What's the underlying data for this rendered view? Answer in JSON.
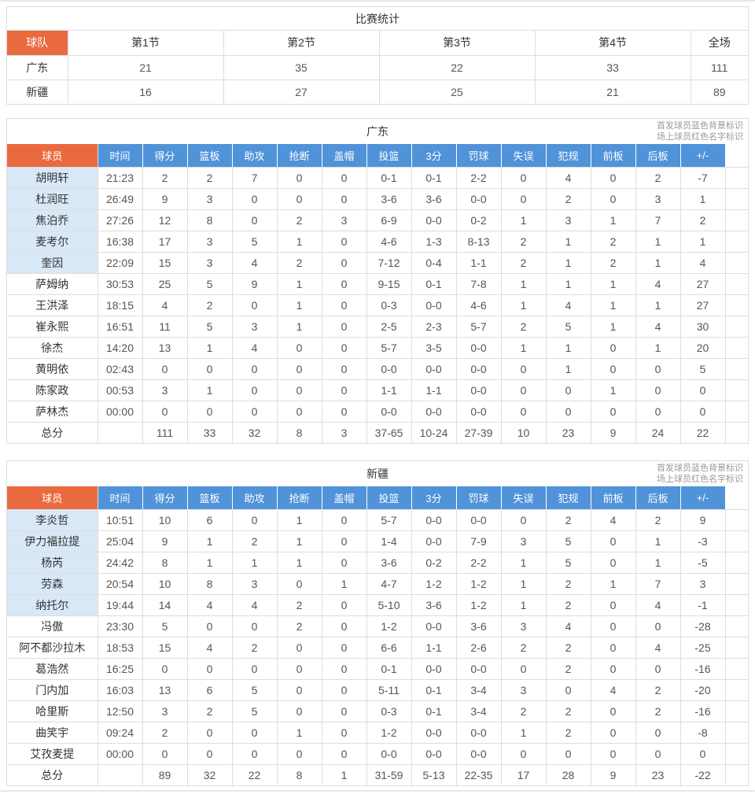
{
  "colors": {
    "accent_orange": "#EA6A40",
    "header_blue": "#5093D9",
    "starter_row_bg": "#D9E8F7",
    "border_gray": "#DDDDDD"
  },
  "score_table": {
    "title": "比赛统计",
    "team_header": "球队",
    "columns": [
      "第1节",
      "第2节",
      "第3节",
      "第4节",
      "全场"
    ],
    "rows": [
      {
        "team": "广东",
        "values": [
          "21",
          "35",
          "22",
          "33",
          "111"
        ]
      },
      {
        "team": "新疆",
        "values": [
          "16",
          "27",
          "25",
          "21",
          "89"
        ]
      }
    ]
  },
  "legend": {
    "line1": "首发球员蓝色背景标识",
    "line2": "场上球员红色名字标识"
  },
  "player_header": "球员",
  "stat_columns": [
    "时间",
    "得分",
    "篮板",
    "助攻",
    "抢断",
    "盖帽",
    "投篮",
    "3分",
    "罚球",
    "失误",
    "犯规",
    "前板",
    "后板",
    "+/-"
  ],
  "teams": [
    {
      "title": "广东",
      "players": [
        {
          "name": "胡明轩",
          "starter": true,
          "values": [
            "21:23",
            "2",
            "2",
            "7",
            "0",
            "0",
            "0-1",
            "0-1",
            "2-2",
            "0",
            "4",
            "0",
            "2",
            "-7"
          ]
        },
        {
          "name": "杜润旺",
          "starter": true,
          "values": [
            "26:49",
            "9",
            "3",
            "0",
            "0",
            "0",
            "3-6",
            "3-6",
            "0-0",
            "0",
            "2",
            "0",
            "3",
            "1"
          ]
        },
        {
          "name": "焦泊乔",
          "starter": true,
          "values": [
            "27:26",
            "12",
            "8",
            "0",
            "2",
            "3",
            "6-9",
            "0-0",
            "0-2",
            "1",
            "3",
            "1",
            "7",
            "2"
          ]
        },
        {
          "name": "麦考尔",
          "starter": true,
          "values": [
            "16:38",
            "17",
            "3",
            "5",
            "1",
            "0",
            "4-6",
            "1-3",
            "8-13",
            "2",
            "1",
            "2",
            "1",
            "1"
          ]
        },
        {
          "name": "奎因",
          "starter": true,
          "values": [
            "22:09",
            "15",
            "3",
            "4",
            "2",
            "0",
            "7-12",
            "0-4",
            "1-1",
            "2",
            "1",
            "2",
            "1",
            "4"
          ]
        },
        {
          "name": "萨姆纳",
          "starter": false,
          "values": [
            "30:53",
            "25",
            "5",
            "9",
            "1",
            "0",
            "9-15",
            "0-1",
            "7-8",
            "1",
            "1",
            "1",
            "4",
            "27"
          ]
        },
        {
          "name": "王洪泽",
          "starter": false,
          "values": [
            "18:15",
            "4",
            "2",
            "0",
            "1",
            "0",
            "0-3",
            "0-0",
            "4-6",
            "1",
            "4",
            "1",
            "1",
            "27"
          ]
        },
        {
          "name": "崔永熙",
          "starter": false,
          "values": [
            "16:51",
            "11",
            "5",
            "3",
            "1",
            "0",
            "2-5",
            "2-3",
            "5-7",
            "2",
            "5",
            "1",
            "4",
            "30"
          ]
        },
        {
          "name": "徐杰",
          "starter": false,
          "values": [
            "14:20",
            "13",
            "1",
            "4",
            "0",
            "0",
            "5-7",
            "3-5",
            "0-0",
            "1",
            "1",
            "0",
            "1",
            "20"
          ]
        },
        {
          "name": "黄明依",
          "starter": false,
          "values": [
            "02:43",
            "0",
            "0",
            "0",
            "0",
            "0",
            "0-0",
            "0-0",
            "0-0",
            "0",
            "1",
            "0",
            "0",
            "5"
          ]
        },
        {
          "name": "陈家政",
          "starter": false,
          "values": [
            "00:53",
            "3",
            "1",
            "0",
            "0",
            "0",
            "1-1",
            "1-1",
            "0-0",
            "0",
            "0",
            "1",
            "0",
            "0"
          ]
        },
        {
          "name": "萨林杰",
          "starter": false,
          "values": [
            "00:00",
            "0",
            "0",
            "0",
            "0",
            "0",
            "0-0",
            "0-0",
            "0-0",
            "0",
            "0",
            "0",
            "0",
            "0"
          ]
        }
      ],
      "total": {
        "label": "总分",
        "values": [
          "",
          "111",
          "33",
          "32",
          "8",
          "3",
          "37-65",
          "10-24",
          "27-39",
          "10",
          "23",
          "9",
          "24",
          "22"
        ]
      }
    },
    {
      "title": "新疆",
      "players": [
        {
          "name": "李炎哲",
          "starter": true,
          "values": [
            "10:51",
            "10",
            "6",
            "0",
            "1",
            "0",
            "5-7",
            "0-0",
            "0-0",
            "0",
            "2",
            "4",
            "2",
            "9"
          ]
        },
        {
          "name": "伊力福拉提",
          "starter": true,
          "values": [
            "25:04",
            "9",
            "1",
            "2",
            "1",
            "0",
            "1-4",
            "0-0",
            "7-9",
            "3",
            "5",
            "0",
            "1",
            "-3"
          ]
        },
        {
          "name": "杨芮",
          "starter": true,
          "values": [
            "24:42",
            "8",
            "1",
            "1",
            "1",
            "0",
            "3-6",
            "0-2",
            "2-2",
            "1",
            "5",
            "0",
            "1",
            "-5"
          ]
        },
        {
          "name": "劳森",
          "starter": true,
          "values": [
            "20:54",
            "10",
            "8",
            "3",
            "0",
            "1",
            "4-7",
            "1-2",
            "1-2",
            "1",
            "2",
            "1",
            "7",
            "3"
          ]
        },
        {
          "name": "纳托尔",
          "starter": true,
          "values": [
            "19:44",
            "14",
            "4",
            "4",
            "2",
            "0",
            "5-10",
            "3-6",
            "1-2",
            "1",
            "2",
            "0",
            "4",
            "-1"
          ]
        },
        {
          "name": "冯傲",
          "starter": false,
          "values": [
            "23:30",
            "5",
            "0",
            "0",
            "2",
            "0",
            "1-2",
            "0-0",
            "3-6",
            "3",
            "4",
            "0",
            "0",
            "-28"
          ]
        },
        {
          "name": "阿不都沙拉木",
          "starter": false,
          "values": [
            "18:53",
            "15",
            "4",
            "2",
            "0",
            "0",
            "6-6",
            "1-1",
            "2-6",
            "2",
            "2",
            "0",
            "4",
            "-25"
          ]
        },
        {
          "name": "葛浩然",
          "starter": false,
          "values": [
            "16:25",
            "0",
            "0",
            "0",
            "0",
            "0",
            "0-1",
            "0-0",
            "0-0",
            "0",
            "2",
            "0",
            "0",
            "-16"
          ]
        },
        {
          "name": "门内加",
          "starter": false,
          "values": [
            "16:03",
            "13",
            "6",
            "5",
            "0",
            "0",
            "5-11",
            "0-1",
            "3-4",
            "3",
            "0",
            "4",
            "2",
            "-20"
          ]
        },
        {
          "name": "哈里斯",
          "starter": false,
          "values": [
            "12:50",
            "3",
            "2",
            "5",
            "0",
            "0",
            "0-3",
            "0-1",
            "3-4",
            "2",
            "2",
            "0",
            "2",
            "-16"
          ]
        },
        {
          "name": "曲笑宇",
          "starter": false,
          "values": [
            "09:24",
            "2",
            "0",
            "0",
            "1",
            "0",
            "1-2",
            "0-0",
            "0-0",
            "1",
            "2",
            "0",
            "0",
            "-8"
          ]
        },
        {
          "name": "艾孜麦提",
          "starter": false,
          "values": [
            "00:00",
            "0",
            "0",
            "0",
            "0",
            "0",
            "0-0",
            "0-0",
            "0-0",
            "0",
            "0",
            "0",
            "0",
            "0"
          ]
        }
      ],
      "total": {
        "label": "总分",
        "values": [
          "",
          "89",
          "32",
          "22",
          "8",
          "1",
          "31-59",
          "5-13",
          "22-35",
          "17",
          "28",
          "9",
          "23",
          "-22"
        ]
      }
    }
  ]
}
